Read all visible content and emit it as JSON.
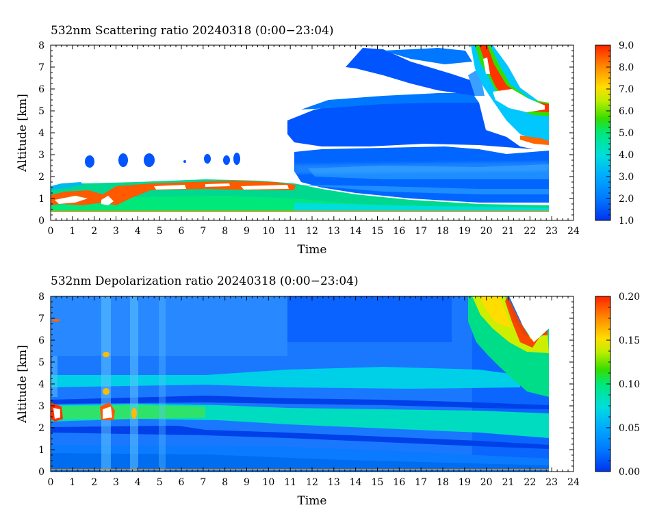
{
  "chart_data": [
    {
      "type": "heatmap",
      "title": "532nm Scattering ratio  20240318 (0:00−23:04)",
      "xlabel": "Time",
      "ylabel": "Altitude [km]",
      "xlim": [
        0,
        24
      ],
      "ylim": [
        0,
        8
      ],
      "x_ticks": [
        "0",
        "1",
        "2",
        "3",
        "4",
        "5",
        "6",
        "7",
        "8",
        "9",
        "10",
        "11",
        "12",
        "13",
        "14",
        "15",
        "16",
        "17",
        "18",
        "19",
        "20",
        "21",
        "22",
        "23",
        "24"
      ],
      "y_ticks": [
        "0",
        "1",
        "2",
        "3",
        "4",
        "5",
        "6",
        "7",
        "8"
      ],
      "colorbar": {
        "min": 1.0,
        "max": 9.0,
        "ticks": [
          "1.0",
          "2.0",
          "3.0",
          "4.0",
          "5.0",
          "6.0",
          "7.0",
          "8.0",
          "9.0"
        ],
        "colors": [
          "#0033ee",
          "#0077ff",
          "#00aaff",
          "#00dddd",
          "#00e87a",
          "#33dd00",
          "#bbee00",
          "#ffdd00",
          "#ff8800",
          "#ff2200"
        ]
      },
      "data_end_hour": 23.07,
      "features": [
        {
          "x0": 0.0,
          "x1": 23.0,
          "y0": 0.35,
          "y1": 0.45,
          "value": 6.5
        },
        {
          "x0": 0.0,
          "x1": 11.5,
          "y0": 0.45,
          "y1": 1.6,
          "value": 4.0
        },
        {
          "x0": 11.5,
          "x1": 23.0,
          "y0": 0.45,
          "y1": 1.1,
          "value": 3.3
        },
        {
          "x0": 0.2,
          "x1": 11.0,
          "y0": 0.9,
          "y1": 1.8,
          "value": 8.5
        },
        {
          "x0": 1.6,
          "x1": 8.8,
          "y0": 2.5,
          "y1": 3.0,
          "value": 2.0
        },
        {
          "x0": 11.0,
          "x1": 23.0,
          "y0": 1.1,
          "y1": 3.2,
          "value": 2.0
        },
        {
          "x0": 10.8,
          "x1": 20.0,
          "y0": 3.4,
          "y1": 5.5,
          "value": 1.8
        },
        {
          "x0": 14.0,
          "x1": 20.0,
          "y0": 5.5,
          "y1": 7.6,
          "value": 1.6
        },
        {
          "x0": 19.0,
          "x1": 22.8,
          "y0": 3.7,
          "y1": 8.0,
          "value": 7.5
        }
      ]
    },
    {
      "type": "heatmap",
      "title": "532nm Depolarization ratio  20240318 (0:00−23:04)",
      "xlabel": "Time",
      "ylabel": "Altitude [km]",
      "xlim": [
        0,
        24
      ],
      "ylim": [
        0,
        8
      ],
      "x_ticks": [
        "0",
        "1",
        "2",
        "3",
        "4",
        "5",
        "6",
        "7",
        "8",
        "9",
        "10",
        "11",
        "12",
        "13",
        "14",
        "15",
        "16",
        "17",
        "18",
        "19",
        "20",
        "21",
        "22",
        "23",
        "24"
      ],
      "y_ticks": [
        "0",
        "1",
        "2",
        "3",
        "4",
        "5",
        "6",
        "7",
        "8"
      ],
      "colorbar": {
        "min": 0.0,
        "max": 0.2,
        "ticks": [
          "0.00",
          "0.05",
          "0.10",
          "0.15",
          "0.20"
        ],
        "colors": [
          "#0033ee",
          "#0077ff",
          "#00aaff",
          "#00dddd",
          "#00e87a",
          "#33dd00",
          "#bbee00",
          "#ffdd00",
          "#ff8800",
          "#ff2200"
        ]
      },
      "data_end_hour": 23.07,
      "features": [
        {
          "x0": 0.0,
          "x1": 23.0,
          "y0": 0.0,
          "y1": 8.0,
          "value": 0.025
        },
        {
          "x0": 0.0,
          "x1": 23.0,
          "y0": 2.2,
          "y1": 3.1,
          "value": 0.065
        },
        {
          "x0": 0.0,
          "x1": 23.0,
          "y0": 3.9,
          "y1": 4.6,
          "value": 0.05
        },
        {
          "x0": 19.0,
          "x1": 22.8,
          "y0": 4.0,
          "y1": 8.0,
          "value": 0.11
        }
      ]
    }
  ]
}
